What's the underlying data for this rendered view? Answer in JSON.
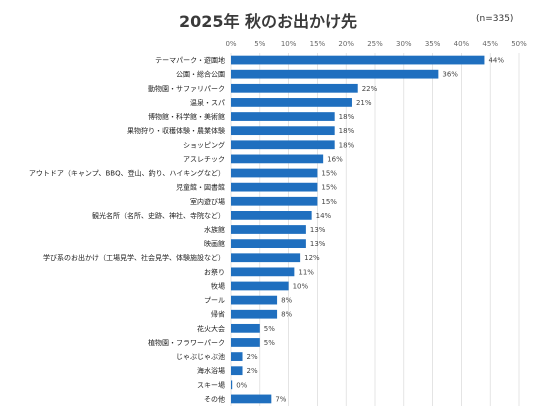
{
  "title": "2025年 秋のお出かけ先",
  "sample_note": "(n=335)",
  "colors": {
    "bar": "#1f6fbf",
    "grid": "#d9d9d9"
  },
  "chart_data": {
    "type": "bar",
    "orientation": "horizontal",
    "title": "2025年 秋のお出かけ先",
    "xlim": [
      0,
      50
    ],
    "x_ticks": [
      "0%",
      "5%",
      "10%",
      "15%",
      "20%",
      "25%",
      "30%",
      "35%",
      "40%",
      "45%",
      "50%"
    ],
    "grid": true,
    "legend": "none",
    "categories": [
      "テーマパーク・遊園地",
      "公園・総合公園",
      "動物園・サファリパーク",
      "温泉・スパ",
      "博物館・科学館・美術館",
      "果物狩り・収穫体験・農業体験",
      "ショッピング",
      "アスレチック",
      "アウトドア（キャンプ、BBQ、登山、釣り、ハイキングなど）",
      "児童館・図書館",
      "室内遊び場",
      "観光名所（名所、史跡、神社、寺院など）",
      "水族館",
      "映画館",
      "学び系のお出かけ（工場見学、社会見学、体験施設など）",
      "お祭り",
      "牧場",
      "プール",
      "帰省",
      "花火大会",
      "植物園・フラワーパーク",
      "じゃぶじゃぶ池",
      "海水浴場",
      "スキー場",
      "その他"
    ],
    "values": [
      44,
      36,
      22,
      21,
      18,
      18,
      18,
      16,
      15,
      15,
      15,
      14,
      13,
      13,
      12,
      11,
      10,
      8,
      8,
      5,
      5,
      2,
      2,
      0,
      7
    ],
    "value_labels": [
      "44%",
      "36%",
      "22%",
      "21%",
      "18%",
      "18%",
      "18%",
      "16%",
      "15%",
      "15%",
      "15%",
      "14%",
      "13%",
      "13%",
      "12%",
      "11%",
      "10%",
      "8%",
      "8%",
      "5%",
      "5%",
      "2%",
      "2%",
      "0%",
      "7%"
    ]
  }
}
